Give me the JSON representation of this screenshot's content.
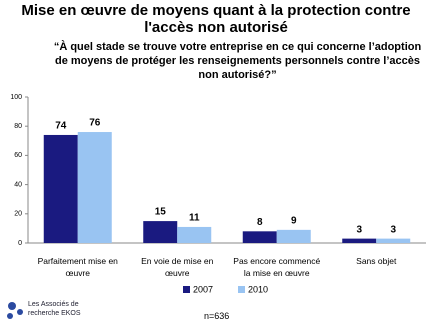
{
  "chart_data": {
    "type": "bar",
    "title": "Mise en œuvre de moyens quant à la protection contre l'accès non autorisé",
    "subtitle": "“À quel stade se trouve votre entreprise en ce qui concerne l’adoption de moyens de protéger les renseignements personnels contre l’accès non autorisé?”",
    "categories": [
      "Parfaitement mise en œuvre",
      "En voie de mise en œuvre",
      "Pas encore commencé la mise en œuvre",
      "Sans objet"
    ],
    "series": [
      {
        "name": "2007",
        "color": "#1a1a80",
        "values": [
          74,
          15,
          8,
          3
        ]
      },
      {
        "name": "2010",
        "color": "#99c4f2",
        "values": [
          76,
          11,
          9,
          3
        ]
      }
    ],
    "ylim": [
      0,
      100
    ],
    "yticks": [
      0,
      20,
      40,
      60,
      80,
      100
    ],
    "note": "n=636",
    "logo": "Les Associés de recherche EKOS"
  }
}
